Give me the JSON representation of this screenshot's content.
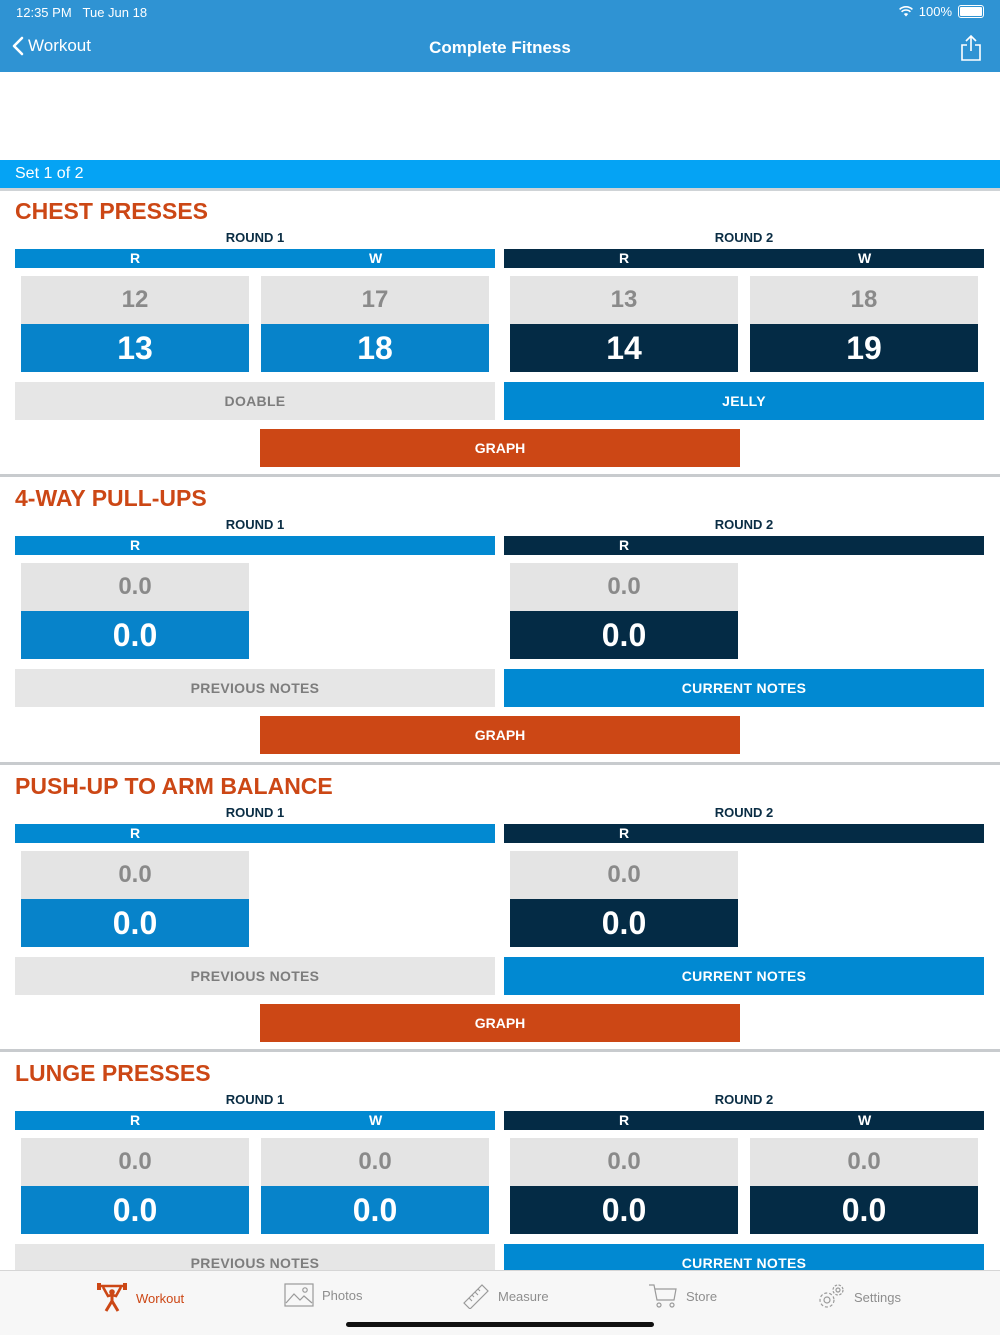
{
  "status": {
    "time": "12:35 PM",
    "date": "Tue Jun 18",
    "battery": "100%"
  },
  "nav": {
    "back_label": "Workout",
    "title": "Complete Fitness"
  },
  "set_label": "Set 1 of 2",
  "colors": {
    "brand_blue": "#2f93d3",
    "round1": "#0289d1",
    "round2": "#042b45",
    "accent": "#cc4715"
  },
  "exercises": [
    {
      "title": "CHEST PRESSES",
      "round1": {
        "label": "ROUND 1",
        "col_r": "R",
        "col_w": "W",
        "prev_r": "12",
        "cur_r": "13",
        "prev_w": "17",
        "cur_w": "18"
      },
      "round2": {
        "label": "ROUND 2",
        "col_r": "R",
        "col_w": "W",
        "prev_r": "13",
        "cur_r": "14",
        "prev_w": "18",
        "cur_w": "19"
      },
      "prev_note": "DOABLE",
      "cur_note": "JELLY",
      "graph": "GRAPH"
    },
    {
      "title": "4-WAY PULL-UPS",
      "round1": {
        "label": "ROUND 1",
        "col_r": "R",
        "prev_r": "0.0",
        "cur_r": "0.0"
      },
      "round2": {
        "label": "ROUND 2",
        "col_r": "R",
        "prev_r": "0.0",
        "cur_r": "0.0"
      },
      "prev_note": "PREVIOUS NOTES",
      "cur_note": "CURRENT NOTES",
      "graph": "GRAPH"
    },
    {
      "title": "PUSH-UP TO ARM BALANCE",
      "round1": {
        "label": "ROUND 1",
        "col_r": "R",
        "prev_r": "0.0",
        "cur_r": "0.0"
      },
      "round2": {
        "label": "ROUND 2",
        "col_r": "R",
        "prev_r": "0.0",
        "cur_r": "0.0"
      },
      "prev_note": "PREVIOUS NOTES",
      "cur_note": "CURRENT NOTES",
      "graph": "GRAPH"
    },
    {
      "title": "LUNGE PRESSES",
      "round1": {
        "label": "ROUND 1",
        "col_r": "R",
        "col_w": "W",
        "prev_r": "0.0",
        "cur_r": "0.0",
        "prev_w": "0.0",
        "cur_w": "0.0"
      },
      "round2": {
        "label": "ROUND 2",
        "col_r": "R",
        "col_w": "W",
        "prev_r": "0.0",
        "cur_r": "0.0",
        "prev_w": "0.0",
        "cur_w": "0.0"
      },
      "prev_note": "PREVIOUS NOTES",
      "cur_note": "CURRENT NOTES"
    }
  ],
  "tabs": [
    {
      "label": "Workout",
      "icon": "weightlifter-icon",
      "active": true
    },
    {
      "label": "Photos",
      "icon": "photo-icon"
    },
    {
      "label": "Measure",
      "icon": "ruler-icon"
    },
    {
      "label": "Store",
      "icon": "cart-icon"
    },
    {
      "label": "Settings",
      "icon": "gear-icon"
    }
  ]
}
